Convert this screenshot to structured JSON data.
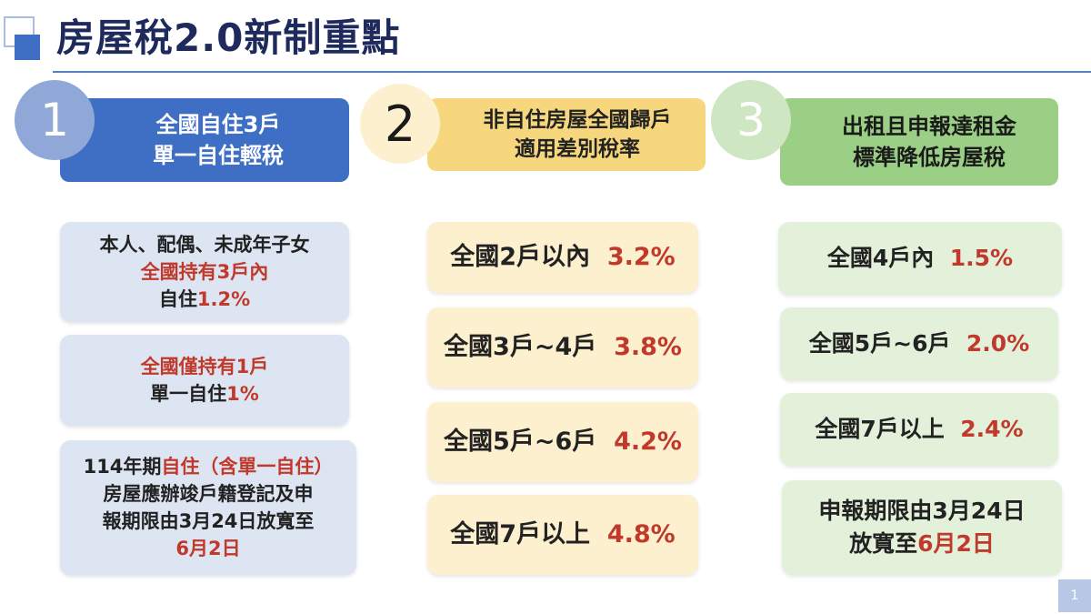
{
  "title": "房屋稅2.0新制重點",
  "page_number": "1",
  "colors": {
    "blue": "#3f6fc4",
    "yellow": "#f6d77e",
    "green": "#9bcf86",
    "accent_red": "#c0392b"
  },
  "sections": [
    {
      "number": "1",
      "heading": [
        "全國自住3戶",
        "單一自住輕稅"
      ],
      "cards": [
        {
          "lines": [
            [
              {
                "t": "本人、配偶、未成年子女"
              }
            ],
            [
              {
                "t": "全國持有3戶內",
                "red": true
              }
            ],
            [
              {
                "t": "自住"
              },
              {
                "t": "1.2%",
                "red": true
              }
            ]
          ]
        },
        {
          "lines": [
            [
              {
                "t": "全國僅持有1戶",
                "red": true
              }
            ],
            [
              {
                "t": "單一自住"
              },
              {
                "t": "1%",
                "red": true
              }
            ]
          ]
        },
        {
          "lines": [
            [
              {
                "t": "114年期"
              },
              {
                "t": "自住（含單一自住）",
                "red": true
              }
            ],
            [
              {
                "t": "房屋應辦竣戶籍登記及申"
              }
            ],
            [
              {
                "t": "報期限由3月24日放寬至"
              }
            ],
            [
              {
                "t": "6月2日",
                "red": true
              }
            ]
          ]
        }
      ]
    },
    {
      "number": "2",
      "heading": [
        "非自住房屋全國歸戶",
        "適用差別稅率"
      ],
      "cards": [
        {
          "label": "全國2戶以內",
          "rate": "3.2%"
        },
        {
          "label": "全國3戶~4戶",
          "rate": "3.8%"
        },
        {
          "label": "全國5戶~6戶",
          "rate": "4.2%"
        },
        {
          "label": "全國7戶以上",
          "rate": "4.8%"
        }
      ]
    },
    {
      "number": "3",
      "heading": [
        "出租且申報達租金",
        "標準降低房屋稅"
      ],
      "cards": [
        {
          "label": "全國4戶內",
          "rate": "1.5%"
        },
        {
          "label": "全國5戶~6戶",
          "rate": "2.0%"
        },
        {
          "label": "全國7戶以上",
          "rate": "2.4%"
        },
        {
          "lines": [
            [
              {
                "t": "申報期限由3月24日"
              }
            ],
            [
              {
                "t": "放寬至"
              },
              {
                "t": "6月2日",
                "red": true
              }
            ]
          ]
        }
      ]
    }
  ]
}
